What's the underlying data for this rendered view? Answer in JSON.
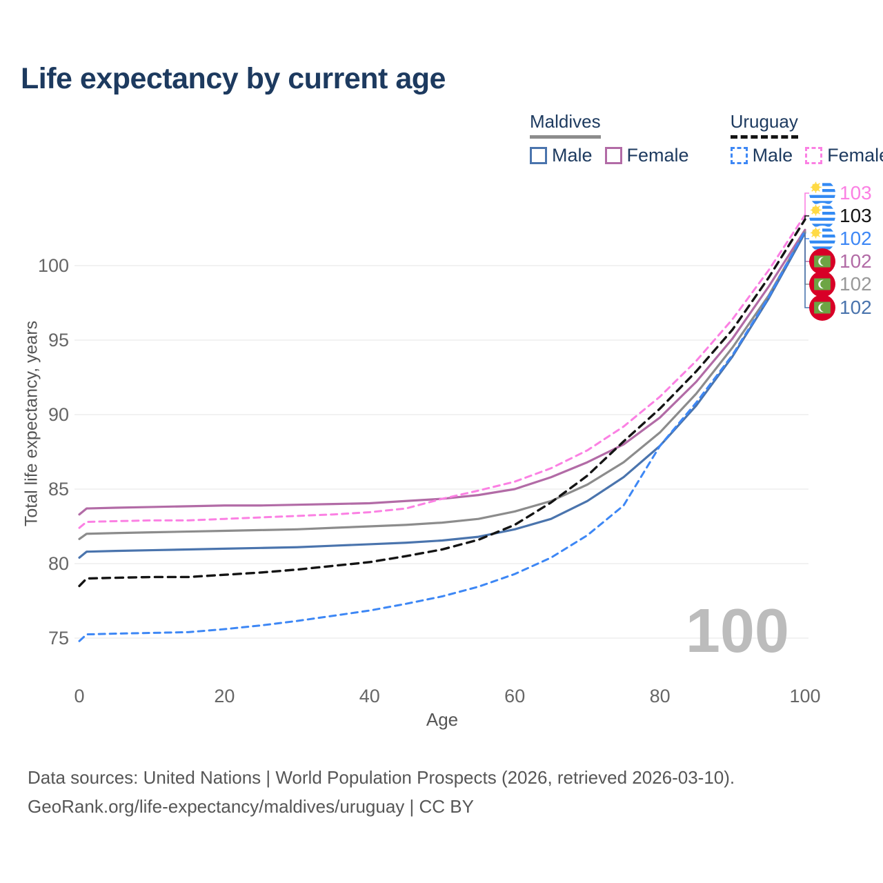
{
  "header": {
    "title": "Life expectancy by current age"
  },
  "legend": {
    "maldives": {
      "label": "Maldives",
      "male_label": "Male",
      "female_label": "Female"
    },
    "uruguay": {
      "label": "Uruguay",
      "male_label": "Male",
      "female_label": "Female"
    }
  },
  "chart_data": {
    "type": "line",
    "title": "Life expectancy by current age",
    "xlabel": "Age",
    "ylabel": "Total life expectancy, years",
    "xticks": [
      0,
      20,
      40,
      60,
      80,
      100
    ],
    "yticks": [
      75,
      80,
      85,
      90,
      95,
      100
    ],
    "xlim": [
      0,
      100
    ],
    "ylim": [
      74,
      104
    ],
    "grid": true,
    "legend_position": "top-right",
    "age_cursor": "100",
    "ages": [
      0,
      1,
      5,
      10,
      15,
      20,
      25,
      30,
      35,
      40,
      45,
      50,
      55,
      60,
      65,
      70,
      75,
      80,
      85,
      90,
      95,
      100
    ],
    "series": [
      {
        "id": "maldives_female",
        "country": "Maldives",
        "sex": "Female",
        "style": "solid",
        "color": "#b26ba6",
        "width": 3.2,
        "dash": "",
        "values": [
          83.3,
          83.7,
          83.75,
          83.8,
          83.85,
          83.9,
          83.9,
          83.95,
          84.0,
          84.05,
          84.2,
          84.35,
          84.6,
          85.0,
          85.8,
          86.8,
          88.0,
          89.8,
          92.2,
          95.1,
          98.6,
          102.4
        ]
      },
      {
        "id": "maldives_total",
        "country": "Maldives",
        "sex": "Both",
        "style": "solid",
        "color": "#8c8c8c",
        "width": 3.2,
        "dash": "",
        "values": [
          81.65,
          82.0,
          82.05,
          82.1,
          82.15,
          82.2,
          82.25,
          82.3,
          82.4,
          82.5,
          82.6,
          82.75,
          83.0,
          83.5,
          84.2,
          85.3,
          86.8,
          88.8,
          91.4,
          94.5,
          98.0,
          102.3
        ]
      },
      {
        "id": "maldives_male",
        "country": "Maldives",
        "sex": "Male",
        "style": "solid",
        "color": "#4a74ad",
        "width": 3.2,
        "dash": "",
        "values": [
          80.4,
          80.8,
          80.85,
          80.9,
          80.95,
          81.0,
          81.05,
          81.1,
          81.2,
          81.3,
          81.4,
          81.55,
          81.8,
          82.3,
          83.0,
          84.2,
          85.8,
          87.9,
          90.6,
          93.9,
          97.8,
          102.2
        ]
      },
      {
        "id": "uruguay_female",
        "country": "Uruguay",
        "sex": "Female",
        "style": "dashed",
        "color": "#fb80e3",
        "width": 3.0,
        "dash": "9 7",
        "values": [
          82.4,
          82.8,
          82.85,
          82.9,
          82.9,
          83.0,
          83.1,
          83.2,
          83.3,
          83.45,
          83.7,
          84.35,
          84.9,
          85.5,
          86.4,
          87.6,
          89.2,
          91.2,
          93.6,
          96.4,
          99.7,
          103.4
        ]
      },
      {
        "id": "uruguay_total",
        "country": "Uruguay",
        "sex": "Both",
        "style": "dashed",
        "color": "#141414",
        "width": 3.4,
        "dash": "11 8",
        "values": [
          78.5,
          79.0,
          79.05,
          79.1,
          79.1,
          79.25,
          79.4,
          79.6,
          79.85,
          80.1,
          80.5,
          80.95,
          81.6,
          82.6,
          84.1,
          85.9,
          88.2,
          90.4,
          92.9,
          95.7,
          99.2,
          103.1
        ]
      },
      {
        "id": "uruguay_male",
        "country": "Uruguay",
        "sex": "Male",
        "style": "dashed",
        "color": "#3d87f5",
        "width": 3.0,
        "dash": "9 7",
        "values": [
          74.8,
          75.25,
          75.3,
          75.35,
          75.4,
          75.6,
          75.85,
          76.15,
          76.5,
          76.85,
          77.3,
          77.8,
          78.45,
          79.3,
          80.4,
          81.9,
          83.9,
          87.9,
          90.8,
          94.0,
          97.9,
          102.35
        ]
      }
    ],
    "end_labels": [
      {
        "series": "uruguay_female",
        "value": "103",
        "color": "#fb80e3",
        "flag": "uruguay"
      },
      {
        "series": "uruguay_total",
        "value": "103",
        "color": "#141414",
        "flag": "uruguay"
      },
      {
        "series": "uruguay_male",
        "value": "102",
        "color": "#3d87f5",
        "flag": "uruguay"
      },
      {
        "series": "maldives_female",
        "value": "102",
        "color": "#b26ba6",
        "flag": "maldives"
      },
      {
        "series": "maldives_total",
        "value": "102",
        "color": "#999999",
        "flag": "maldives"
      },
      {
        "series": "maldives_male",
        "value": "102",
        "color": "#4a74ad",
        "flag": "maldives"
      }
    ],
    "flag_colors": {
      "uruguay_stripe": "#338af3",
      "uruguay_sun": "#ffda44",
      "maldives_red": "#d80027",
      "maldives_green": "#6da544",
      "maldives_crescent": "#ffffff"
    }
  },
  "footer": {
    "line1": "Data sources: United Nations | World Population Prospects (2026, retrieved 2026-03-10).",
    "line2": "GeoRank.org/life-expectancy/maldives/uruguay | CC BY"
  }
}
